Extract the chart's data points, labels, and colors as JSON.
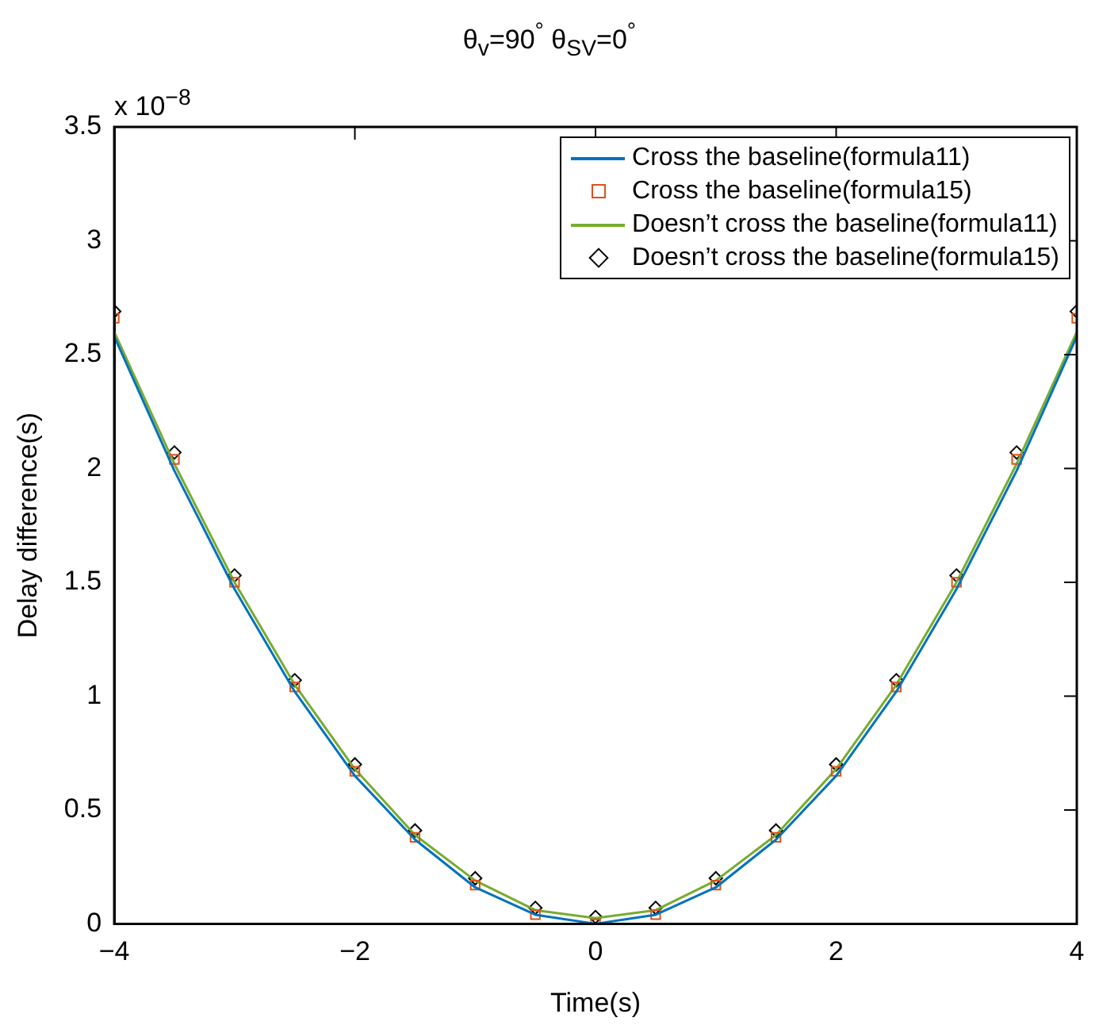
{
  "chart_data": {
    "type": "line",
    "title": "θ$_{v}$=90$^{°}$  θ$_{SV}$=0$^{°}$",
    "xlabel": "Time(s)",
    "ylabel": "Delay difference(s)",
    "annotations": [
      "x 10$^{−8}$"
    ],
    "x": [
      -4,
      -3.5,
      -3,
      -2.5,
      -2,
      -1.5,
      -1,
      -0.5,
      0,
      0.5,
      1,
      1.5,
      2,
      2.5,
      3,
      3.5,
      4
    ],
    "series": [
      {
        "name": "Cross the baseline(formula11)",
        "type": "line",
        "marker": "none",
        "color": "#0072bd",
        "values": [
          2.58,
          1.99,
          1.47,
          1.02,
          0.65,
          0.37,
          0.16,
          0.04,
          0,
          0.04,
          0.16,
          0.37,
          0.65,
          1.02,
          1.47,
          1.99,
          2.58
        ]
      },
      {
        "name": "Cross the baseline(formula15)",
        "type": "scatter",
        "marker": "square",
        "color": "#d95319",
        "values": [
          2.66,
          2.04,
          1.5,
          1.04,
          0.67,
          0.38,
          0.17,
          0.04,
          0,
          0.04,
          0.17,
          0.38,
          0.67,
          1.04,
          1.5,
          2.04,
          2.66
        ]
      },
      {
        "name": "Doesn’t cross the baseline(formula11)",
        "type": "line",
        "marker": "none",
        "color": "#77ac30",
        "values": [
          2.6,
          2.02,
          1.5,
          1.05,
          0.68,
          0.39,
          0.19,
          0.06,
          0.025,
          0.06,
          0.19,
          0.39,
          0.68,
          1.05,
          1.5,
          2.02,
          2.6
        ]
      },
      {
        "name": "Doesn’t cross the baseline(formula15)",
        "type": "scatter",
        "marker": "diamond",
        "color": "#000000",
        "values": [
          2.69,
          2.07,
          1.53,
          1.07,
          0.7,
          0.41,
          0.2,
          0.07,
          0.03,
          0.07,
          0.2,
          0.41,
          0.7,
          1.07,
          1.53,
          2.07,
          2.69
        ]
      }
    ],
    "xlim": [
      -4,
      4
    ],
    "xticks": [
      {
        "value": -4,
        "label": "−4"
      },
      {
        "value": -2,
        "label": "−2"
      },
      0,
      2,
      4
    ],
    "ylim": [
      0,
      3.5
    ],
    "yticks": [
      0,
      0.5,
      1,
      1.5,
      2,
      2.5,
      3,
      3.5
    ],
    "grid": false,
    "legend": "top right"
  }
}
